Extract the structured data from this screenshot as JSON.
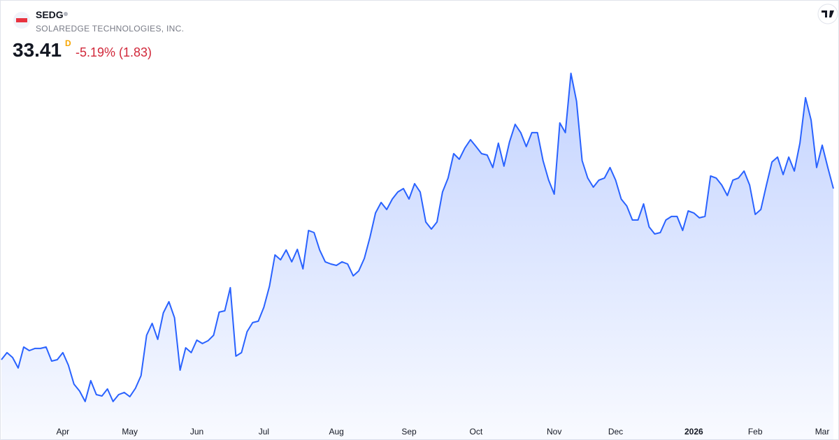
{
  "header": {
    "symbol": "SEDG",
    "company": "SOLAREDGE TECHNOLOGIES, INC.",
    "price": "33.41",
    "interval": "D",
    "change": "-5.19% (1.83)"
  },
  "chart_data": {
    "type": "area",
    "color": "#2962ff",
    "ylim": [
      6.55,
      53.55
    ],
    "categories": [
      null,
      null,
      null,
      null,
      null,
      null,
      null,
      null,
      null,
      null,
      null,
      "Apr",
      null,
      null,
      null,
      null,
      null,
      null,
      null,
      null,
      null,
      null,
      null,
      "May",
      null,
      null,
      null,
      null,
      null,
      null,
      null,
      null,
      null,
      null,
      null,
      "Jun",
      null,
      null,
      null,
      null,
      null,
      null,
      null,
      null,
      null,
      null,
      null,
      "Jul",
      null,
      null,
      null,
      null,
      null,
      null,
      null,
      null,
      null,
      null,
      null,
      null,
      "Aug",
      null,
      null,
      null,
      null,
      null,
      null,
      null,
      null,
      null,
      null,
      null,
      null,
      "Sep",
      null,
      null,
      null,
      null,
      null,
      null,
      null,
      null,
      null,
      null,
      null,
      "Oct",
      null,
      null,
      null,
      null,
      null,
      null,
      null,
      null,
      null,
      null,
      null,
      null,
      null,
      "Nov",
      null,
      null,
      null,
      null,
      null,
      null,
      null,
      null,
      null,
      null,
      "Dec",
      null,
      null,
      null,
      null,
      null,
      null,
      null,
      null,
      null,
      null,
      null,
      null,
      null,
      "2026",
      null,
      null,
      null,
      null,
      null,
      null,
      null,
      null,
      null,
      null,
      "Feb",
      null,
      null,
      null,
      null,
      null,
      null,
      null,
      null,
      null,
      null,
      null,
      "Mar",
      null,
      null
    ],
    "values": [
      15.13,
      15.88,
      15.36,
      14.24,
      16.48,
      16.1,
      16.33,
      16.33,
      16.48,
      14.98,
      15.13,
      15.88,
      14.54,
      12.52,
      11.78,
      10.66,
      12.89,
      11.4,
      11.25,
      12.0,
      10.66,
      11.4,
      11.63,
      11.18,
      12.07,
      13.42,
      17.74,
      19.01,
      17.3,
      20.13,
      21.32,
      19.61,
      14.01,
      16.4,
      15.88,
      17.22,
      16.85,
      17.15,
      17.74,
      20.21,
      20.35,
      22.82,
      15.51,
      15.88,
      18.12,
      19.09,
      19.24,
      20.73,
      22.97,
      26.32,
      25.8,
      26.85,
      25.58,
      26.92,
      24.83,
      28.93,
      28.71,
      26.85,
      25.58,
      25.35,
      25.2,
      25.58,
      25.35,
      24.08,
      24.61,
      25.95,
      28.19,
      30.8,
      31.92,
      31.17,
      32.29,
      33.04,
      33.41,
      32.29,
      33.93,
      33.04,
      29.83,
      29.08,
      29.83,
      33.04,
      34.53,
      37.14,
      36.54,
      37.74,
      38.63,
      37.89,
      37.14,
      36.99,
      35.65,
      38.26,
      35.8,
      38.41,
      40.27,
      39.38,
      37.89,
      39.38,
      39.38,
      36.39,
      34.31,
      32.81,
      40.42,
      39.38,
      45.72,
      42.74,
      36.39,
      34.53,
      33.56,
      34.31,
      34.53,
      35.65,
      34.31,
      32.29,
      31.54,
      30.05,
      30.05,
      31.77,
      29.31,
      28.56,
      28.71,
      30.05,
      30.43,
      30.43,
      28.93,
      31.02,
      30.8,
      30.28,
      30.43,
      34.75,
      34.53,
      33.78,
      32.66,
      34.31,
      34.53,
      35.28,
      33.78,
      30.65,
      31.17,
      33.78,
      36.24,
      36.77,
      34.9,
      36.77,
      35.28,
      38.26,
      43.11,
      40.72,
      35.65,
      38.04,
      35.65,
      33.41
    ]
  }
}
